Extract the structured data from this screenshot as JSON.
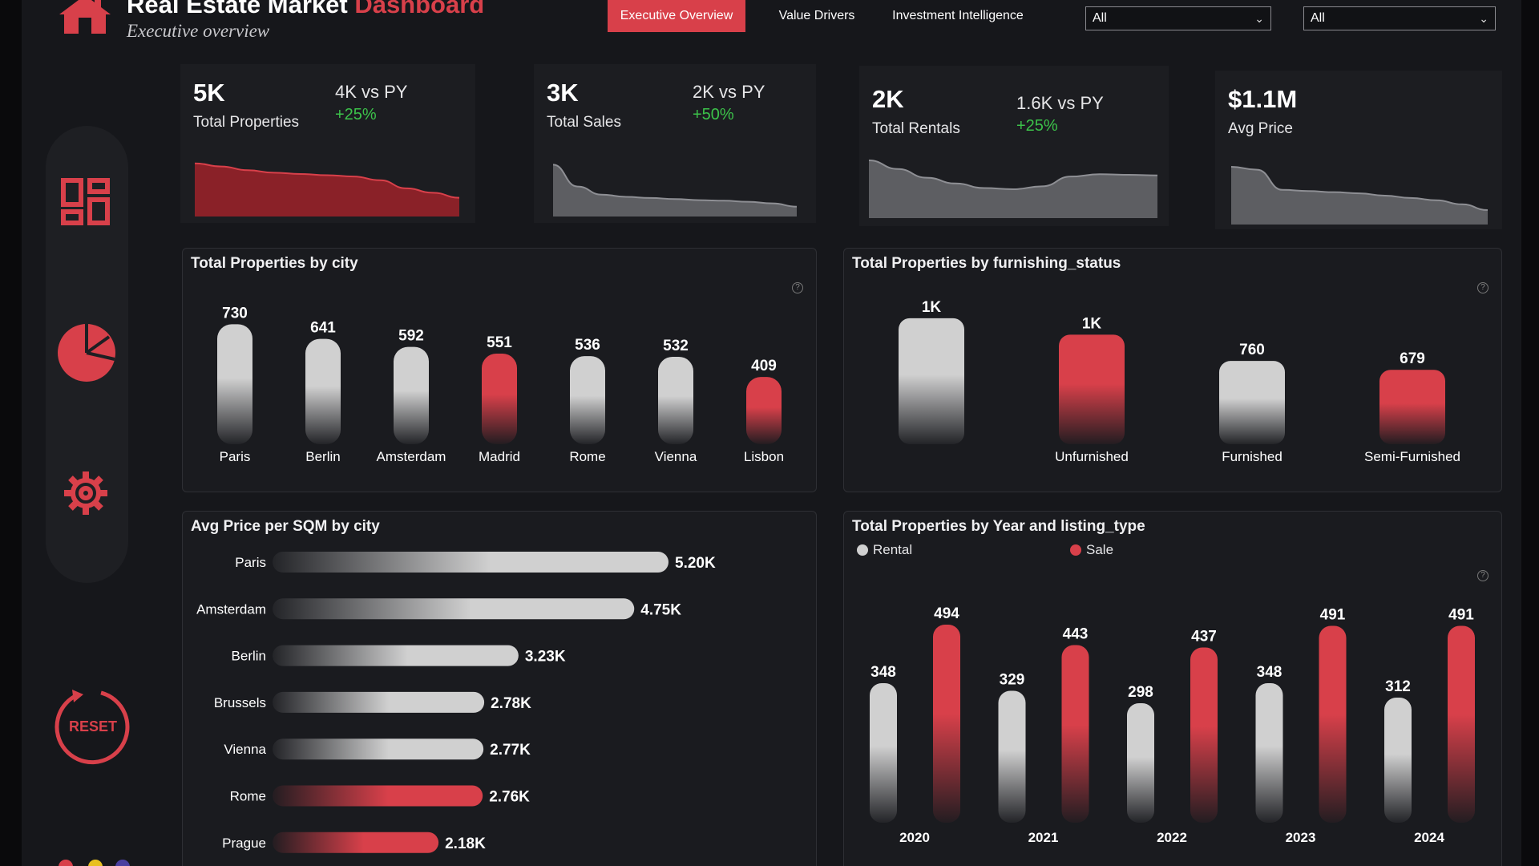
{
  "app": {
    "title_main": "Real Estate Market",
    "title_accent": "Dashboard",
    "subtitle": "Executive overview"
  },
  "tabs": [
    {
      "label": "Executive Overview",
      "active": true
    },
    {
      "label": "Value Drivers",
      "active": false
    },
    {
      "label": "Investment Intelligence",
      "active": false
    }
  ],
  "filters": [
    {
      "value": "All"
    },
    {
      "value": "All"
    }
  ],
  "sidebar": {
    "icons": [
      "dashboard-grid-icon",
      "pie-chart-icon",
      "gear-icon"
    ],
    "reset_label": "RESET"
  },
  "colors": {
    "accent": "#d8404a",
    "positive": "#3cc24a",
    "grey_bar": "#cfcfcf",
    "panel_bg": "#1a1b1f"
  },
  "kpis": [
    {
      "value": "5K",
      "label": "Total Properties",
      "py": "4K vs PY",
      "change": "+25%",
      "spark": [
        0.85,
        0.8,
        0.74,
        0.7,
        0.68,
        0.66,
        0.64,
        0.58,
        0.45,
        0.38,
        0.3
      ],
      "color": "red"
    },
    {
      "value": "3K",
      "label": "Total Sales",
      "py": "2K vs PY",
      "change": "+50%",
      "spark": [
        0.95,
        0.55,
        0.4,
        0.36,
        0.34,
        0.32,
        0.3,
        0.29,
        0.27,
        0.24,
        0.18
      ],
      "color": "grey"
    },
    {
      "value": "2K",
      "label": "Total Rentals",
      "py": "1.6K vs PY",
      "change": "+25%",
      "spark": [
        1.0,
        0.85,
        0.7,
        0.6,
        0.52,
        0.5,
        0.55,
        0.72,
        0.76,
        0.75,
        0.74
      ],
      "color": "grey"
    },
    {
      "value": "$1.1M",
      "label": "Avg Price",
      "py": "",
      "change": "",
      "spark": [
        1.0,
        0.95,
        0.6,
        0.58,
        0.56,
        0.54,
        0.5,
        0.46,
        0.42,
        0.35,
        0.25
      ],
      "color": "grey"
    }
  ],
  "chart_data": [
    {
      "id": "by_city",
      "type": "bar",
      "title": "Total Properties by city",
      "categories": [
        "Paris",
        "Berlin",
        "Amsterdam",
        "Madrid",
        "Rome",
        "Vienna",
        "Lisbon"
      ],
      "values": [
        730,
        641,
        592,
        551,
        536,
        532,
        409
      ],
      "labels": [
        "730",
        "641",
        "592",
        "551",
        "536",
        "532",
        "409"
      ],
      "highlight": [
        "Madrid",
        "Lisbon"
      ],
      "ylim": [
        0,
        800
      ]
    },
    {
      "id": "by_furnishing",
      "type": "bar",
      "title": "Total Properties by furnishing_status",
      "categories": [
        "",
        "Unfurnished",
        "Furnished",
        "Semi-Furnished"
      ],
      "values": [
        1150,
        1000,
        760,
        679
      ],
      "labels": [
        "1K",
        "1K",
        "760",
        "679"
      ],
      "highlight": [
        "Unfurnished",
        "Semi-Furnished"
      ],
      "ylim": [
        0,
        1200
      ]
    },
    {
      "id": "price_sqm",
      "type": "bar",
      "orientation": "horizontal",
      "title": "Avg Price per SQM by city",
      "categories": [
        "Paris",
        "Amsterdam",
        "Berlin",
        "Brussels",
        "Vienna",
        "Rome",
        "Prague"
      ],
      "values": [
        5200,
        4750,
        3230,
        2780,
        2770,
        2760,
        2180
      ],
      "labels": [
        "5.20K",
        "4.75K",
        "3.23K",
        "2.78K",
        "2.77K",
        "2.76K",
        "2.18K"
      ],
      "highlight": [
        "Rome",
        "Prague"
      ],
      "xlim": [
        0,
        5400
      ]
    },
    {
      "id": "by_year",
      "type": "bar",
      "title": "Total Properties by Year and listing_type",
      "categories": [
        "2020",
        "2021",
        "2022",
        "2023",
        "2024"
      ],
      "series": [
        {
          "name": "Rental",
          "values": [
            348,
            329,
            298,
            348,
            312
          ]
        },
        {
          "name": "Sale",
          "values": [
            494,
            443,
            437,
            491,
            491
          ]
        }
      ],
      "ylim": [
        0,
        520
      ]
    }
  ]
}
